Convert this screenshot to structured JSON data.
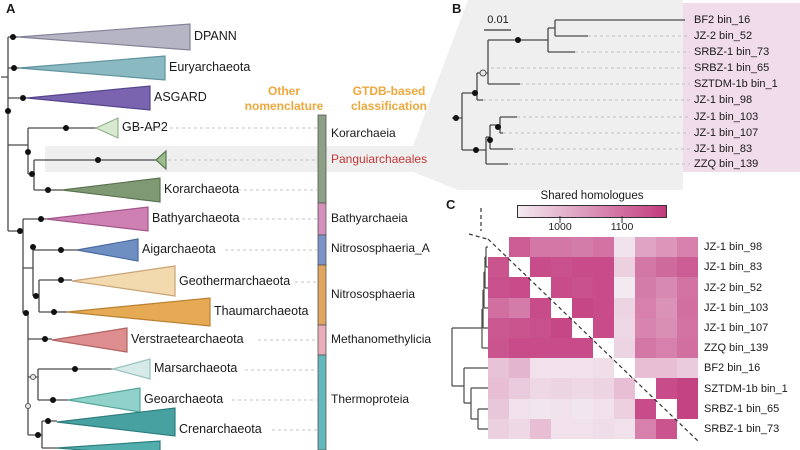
{
  "figure": {
    "panel_a_label": "A",
    "panel_b_label": "B",
    "panel_c_label": "C"
  },
  "panelA": {
    "headers": {
      "other_line1": "Other",
      "other_line2": "nomenclature",
      "gtdb_line1": "GTDB-based",
      "gtdb_line2": "classification",
      "color": "#eda73b"
    },
    "clades": [
      {
        "label": "DPANN",
        "color": "#b5b5c3",
        "stroke": "#83839a"
      },
      {
        "label": "Euryarchaeota",
        "color": "#8ab9c1",
        "stroke": "#5f929c"
      },
      {
        "label": "ASGARD",
        "color": "#7a64af",
        "stroke": "#55478c"
      },
      {
        "label": "GB-AP2",
        "color": "#d9e9d1",
        "stroke": "#93b38a"
      },
      {
        "label": "",
        "color": "#9dbb8d",
        "stroke": "#5c7a52"
      },
      {
        "label": "Korarchaeota",
        "color": "#7e9973",
        "stroke": "#5a7450"
      },
      {
        "label": "Bathyarchaeota",
        "color": "#ce80b3",
        "stroke": "#a1568a"
      },
      {
        "label": "Aigarchaeota",
        "color": "#6d8fc2",
        "stroke": "#4b6b9f"
      },
      {
        "label": "Geothermarchaeota",
        "color": "#f3d9ae",
        "stroke": "#c9a478"
      },
      {
        "label": "Thaumarchaeota",
        "color": "#e6aa55",
        "stroke": "#b98233"
      },
      {
        "label": "Verstraetearchaeota",
        "color": "#de8e8e",
        "stroke": "#b26363"
      },
      {
        "label": "Marsarchaeota",
        "color": "#d6ebe9",
        "stroke": "#98c2be"
      },
      {
        "label": "Geoarchaeota",
        "color": "#90d1c9",
        "stroke": "#58a79e"
      },
      {
        "label": "Crenarchaeota",
        "color": "#47a1a1",
        "stroke": "#2d7d7d"
      },
      {
        "label": "",
        "color": "#52adad",
        "stroke": "#2d7d7d"
      }
    ],
    "classification": {
      "labels": [
        {
          "text": "Korarchaeia",
          "color": "#1a1a1a"
        },
        {
          "text": "Panguiarchaeales",
          "color": "#c63636"
        },
        {
          "text": "Bathyarchaeia",
          "color": "#1a1a1a"
        },
        {
          "text": "Nitrososphaeria_A",
          "color": "#1a1a1a"
        },
        {
          "text": "Nitrososphaeria",
          "color": "#1a1a1a"
        },
        {
          "text": "Methanomethylicia",
          "color": "#1a1a1a"
        },
        {
          "text": "Thermoproteia",
          "color": "#1a1a1a"
        }
      ],
      "bar_colors": [
        "#8d9f85",
        "#d490bb",
        "#7b93c9",
        "#e0a55e",
        "#eaaebb",
        "#62b8bc"
      ]
    }
  },
  "panelB": {
    "scale_label": "0.01",
    "highlight_box_color": "#f0dcea",
    "background_color": "#efefef",
    "taxa": [
      "BF2 bin_16",
      "JZ-2 bin_52",
      "SRBZ-1 bin_73",
      "SRBZ-1 bin_65",
      "SZTDM-1b bin_1",
      "JZ-1 bin_98",
      "JZ-1 bin_103",
      "JZ-1 bin_107",
      "JZ-1 bin_83",
      "ZZQ bin_139"
    ]
  },
  "panelC": {
    "legend_title": "Shared homologues",
    "legend_ticks": [
      "1000",
      "1100"
    ],
    "rows": [
      "JZ-1 bin_98",
      "JZ-1 bin_83",
      "JZ-2 bin_52",
      "JZ-1 bin_103",
      "JZ-1 bin_107",
      "ZZQ bin_139",
      "BF2 bin_16",
      "SZTDM-1b bin_1",
      "SRBZ-1 bin_65",
      "SRBZ-1 bin_73"
    ]
  },
  "chart_data": {
    "type": "heatmap",
    "title": "Shared homologues",
    "rows": [
      "JZ-1 bin_98",
      "JZ-1 bin_83",
      "JZ-2 bin_52",
      "JZ-1 bin_103",
      "JZ-1 bin_107",
      "ZZQ bin_139",
      "BF2 bin_16",
      "SZTDM-1b bin_1",
      "SRBZ-1 bin_65",
      "SRBZ-1 bin_73"
    ],
    "cols": [
      "JZ-1 bin_98",
      "JZ-1 bin_83",
      "JZ-2 bin_52",
      "JZ-1 bin_103",
      "JZ-1 bin_107",
      "ZZQ bin_139",
      "BF2 bin_16",
      "SZTDM-1b bin_1",
      "SRBZ-1 bin_65",
      "SRBZ-1 bin_73"
    ],
    "legend_tick_values": [
      1000,
      1100
    ],
    "matrix": [
      [
        null,
        1110,
        1080,
        1080,
        1075,
        1085,
        960,
        1030,
        1045,
        1070
      ],
      [
        1120,
        null,
        1130,
        1125,
        1130,
        1130,
        980,
        1080,
        1095,
        1110
      ],
      [
        1125,
        1130,
        null,
        1130,
        1125,
        1130,
        950,
        1075,
        1060,
        1085
      ],
      [
        1090,
        1075,
        1130,
        null,
        1135,
        1130,
        975,
        1070,
        1050,
        1090
      ],
      [
        1115,
        1120,
        1125,
        1135,
        null,
        1130,
        970,
        1065,
        1055,
        1085
      ],
      [
        1120,
        1130,
        1130,
        1130,
        1130,
        null,
        975,
        1080,
        1070,
        1090
      ],
      [
        995,
        1010,
        960,
        960,
        960,
        965,
        null,
        1000,
        1000,
        985
      ],
      [
        1000,
        985,
        970,
        975,
        970,
        975,
        1000,
        null,
        1130,
        1140
      ],
      [
        990,
        960,
        955,
        960,
        955,
        960,
        980,
        1130,
        null,
        1140
      ],
      [
        980,
        970,
        1000,
        960,
        960,
        965,
        960,
        1070,
        1120,
        null
      ]
    ],
    "scale": {
      "min": 950,
      "max": 1150,
      "light": "#f3eaf1",
      "dark": "#c23a7d"
    },
    "diagonal_cells": "white",
    "legend_position": "top"
  }
}
